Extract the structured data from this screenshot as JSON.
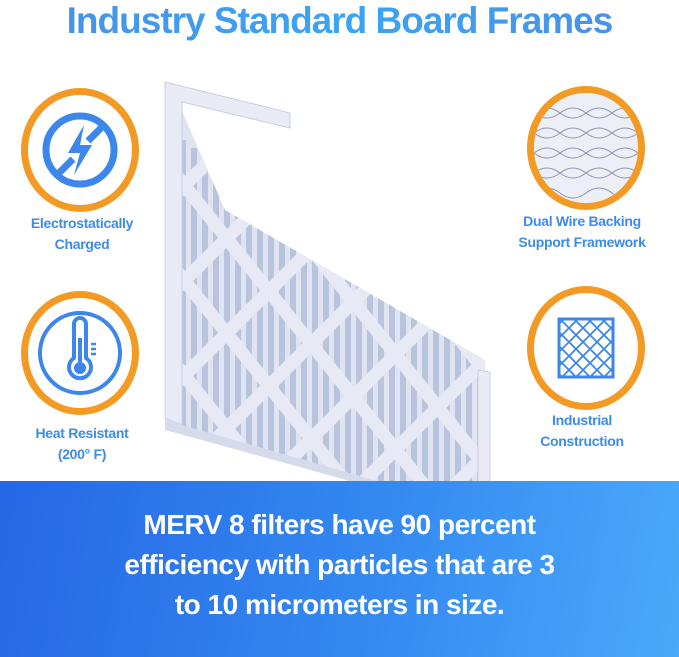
{
  "title": "Industry Standard Board Frames",
  "features": [
    {
      "icon": "no-static-lightning-icon",
      "line1": "Electrostatically",
      "line2": "Charged"
    },
    {
      "icon": "thermometer-icon",
      "line1": "Heat Resistant",
      "line2": "(200° F)"
    },
    {
      "icon": "wire-mesh-icon",
      "line1": "Dual Wire Backing",
      "line2": "Support Framework"
    },
    {
      "icon": "diamond-grid-icon",
      "line1": "Industrial",
      "line2": "Construction"
    }
  ],
  "banner": {
    "line1": "MERV 8 filters have 90 percent",
    "line2": "efficiency with particles that are 3",
    "line3": "to 10 micrometers in size."
  },
  "colors": {
    "accent_blue": "#3d8be8",
    "ring_orange": "#f39a24",
    "banner_start": "#2667e6",
    "banner_end": "#4aa9fb"
  }
}
